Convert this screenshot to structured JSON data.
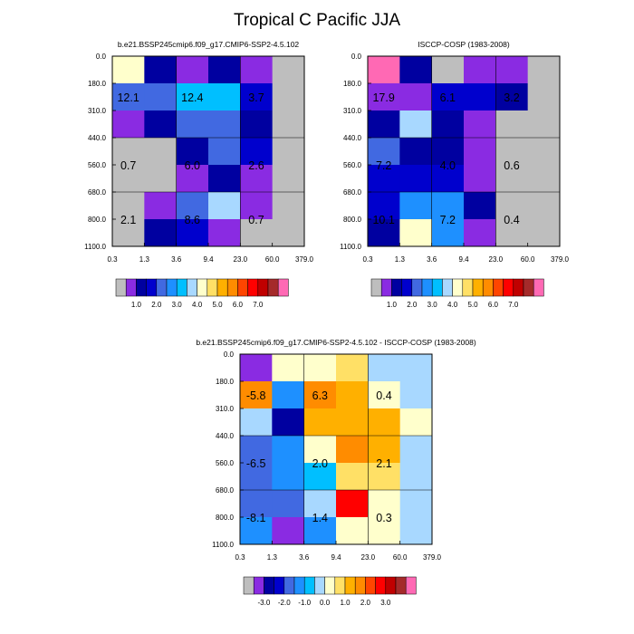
{
  "title": "Tropical C Pacific JJA",
  "chart_data": [
    {
      "type": "heatmap",
      "id": "model",
      "title": "b.e21.BSSP245cmip6.f09_g17.CMIP6-SSP2-4.5.102",
      "x_ticks": [
        "0.3",
        "1.3",
        "3.6",
        "9.4",
        "23.0",
        "60.0",
        "379.0"
      ],
      "y_ticks": [
        "0.0",
        "180.0",
        "310.0",
        "440.0",
        "560.0",
        "680.0",
        "800.0",
        "1100.0"
      ],
      "cells": [
        [
          "#ffffcc",
          "#0000a0",
          "#8a2be2",
          "#0000a0",
          "#8a2be2",
          "#bebebe"
        ],
        [
          "#4169e1",
          "#4169e1",
          "#00bfff",
          "#00bfff",
          "#0000cd",
          "#bebebe"
        ],
        [
          "#8a2be2",
          "#0000a0",
          "#4169e1",
          "#4169e1",
          "#0000a0",
          "#bebebe"
        ],
        [
          "#bebebe",
          "#bebebe",
          "#0000a0",
          "#4169e1",
          "#0000cd",
          "#bebebe"
        ],
        [
          "#bebebe",
          "#bebebe",
          "#8a2be2",
          "#0000a0",
          "#8a2be2",
          "#bebebe"
        ],
        [
          "#bebebe",
          "#8a2be2",
          "#4169e1",
          "#a8d8ff",
          "#8a2be2",
          "#bebebe"
        ],
        [
          "#bebebe",
          "#0000a0",
          "#0000cd",
          "#8a2be2",
          "#bebebe",
          "#bebebe"
        ]
      ],
      "labels": [
        {
          "value": "12.1",
          "col": 0.5,
          "row": 1.5
        },
        {
          "value": "12.4",
          "col": 2.5,
          "row": 1.5
        },
        {
          "value": "3.7",
          "col": 4.5,
          "row": 1.5
        },
        {
          "value": "0.7",
          "col": 0.5,
          "row": 4.0
        },
        {
          "value": "6.0",
          "col": 2.5,
          "row": 4.0
        },
        {
          "value": "2.6",
          "col": 4.5,
          "row": 4.0
        },
        {
          "value": "2.1",
          "col": 0.5,
          "row": 6.0
        },
        {
          "value": "8.6",
          "col": 2.5,
          "row": 6.0
        },
        {
          "value": "0.7",
          "col": 4.5,
          "row": 6.0
        }
      ],
      "colorbar": {
        "colors": [
          "#bebebe",
          "#8a2be2",
          "#0000a0",
          "#0000cd",
          "#4169e1",
          "#1e90ff",
          "#00bfff",
          "#a8d8ff",
          "#ffffcc",
          "#ffe066",
          "#ffb000",
          "#ff8c00",
          "#ff4500",
          "#ff0000",
          "#c00000",
          "#a52a2a",
          "#ff69b4"
        ],
        "labels": [
          "1.0",
          "2.0",
          "3.0",
          "4.0",
          "5.0",
          "6.0",
          "7.0"
        ],
        "label_start": 2,
        "label_step": 2
      }
    },
    {
      "type": "heatmap",
      "id": "obs",
      "title": "ISCCP-COSP (1983-2008)",
      "x_ticks": [
        "0.3",
        "1.3",
        "3.6",
        "9.4",
        "23.0",
        "60.0",
        "379.0"
      ],
      "y_ticks": [
        "0.0",
        "180.0",
        "310.0",
        "440.0",
        "560.0",
        "680.0",
        "800.0",
        "1100.0"
      ],
      "cells": [
        [
          "#ff69b4",
          "#0000a0",
          "#bebebe",
          "#8a2be2",
          "#8a2be2",
          "#bebebe"
        ],
        [
          "#8a2be2",
          "#8a2be2",
          "#0000cd",
          "#0000cd",
          "#0000a0",
          "#bebebe"
        ],
        [
          "#0000a0",
          "#a8d8ff",
          "#0000a0",
          "#8a2be2",
          "#bebebe",
          "#bebebe"
        ],
        [
          "#4169e1",
          "#0000a0",
          "#0000a0",
          "#8a2be2",
          "#bebebe",
          "#bebebe"
        ],
        [
          "#0000cd",
          "#0000cd",
          "#0000cd",
          "#8a2be2",
          "#bebebe",
          "#bebebe"
        ],
        [
          "#0000cd",
          "#1e90ff",
          "#1e90ff",
          "#0000a0",
          "#bebebe",
          "#bebebe"
        ],
        [
          "#0000a0",
          "#ffffcc",
          "#1e90ff",
          "#8a2be2",
          "#bebebe",
          "#bebebe"
        ]
      ],
      "labels": [
        {
          "value": "17.9",
          "col": 0.5,
          "row": 1.5
        },
        {
          "value": "6.1",
          "col": 2.5,
          "row": 1.5
        },
        {
          "value": "3.2",
          "col": 4.5,
          "row": 1.5
        },
        {
          "value": "7.2",
          "col": 0.5,
          "row": 4.0
        },
        {
          "value": "4.0",
          "col": 2.5,
          "row": 4.0
        },
        {
          "value": "0.6",
          "col": 4.5,
          "row": 4.0
        },
        {
          "value": "10.1",
          "col": 0.5,
          "row": 6.0
        },
        {
          "value": "7.2",
          "col": 2.5,
          "row": 6.0
        },
        {
          "value": "0.4",
          "col": 4.5,
          "row": 6.0
        }
      ],
      "colorbar": {
        "colors": [
          "#bebebe",
          "#8a2be2",
          "#0000a0",
          "#0000cd",
          "#4169e1",
          "#1e90ff",
          "#00bfff",
          "#a8d8ff",
          "#ffffcc",
          "#ffe066",
          "#ffb000",
          "#ff8c00",
          "#ff4500",
          "#ff0000",
          "#c00000",
          "#a52a2a",
          "#ff69b4"
        ],
        "labels": [
          "1.0",
          "2.0",
          "3.0",
          "4.0",
          "5.0",
          "6.0",
          "7.0"
        ],
        "label_start": 2,
        "label_step": 2
      }
    },
    {
      "type": "heatmap",
      "id": "diff",
      "title": "b.e21.BSSP245cmip6.f09_g17.CMIP6-SSP2-4.5.102 - ISCCP-COSP (1983-2008)",
      "x_ticks": [
        "0.3",
        "1.3",
        "3.6",
        "9.4",
        "23.0",
        "60.0",
        "379.0"
      ],
      "y_ticks": [
        "0.0",
        "180.0",
        "310.0",
        "440.0",
        "560.0",
        "680.0",
        "800.0",
        "1100.0"
      ],
      "cells": [
        [
          "#8a2be2",
          "#ffffcc",
          "#ffffcc",
          "#ffe066",
          "#a8d8ff",
          "#a8d8ff"
        ],
        [
          "#ff8c00",
          "#1e90ff",
          "#ff8c00",
          "#ffb000",
          "#ffffcc",
          "#a8d8ff"
        ],
        [
          "#a8d8ff",
          "#0000a0",
          "#ffb000",
          "#ffb000",
          "#ffb000",
          "#ffffcc"
        ],
        [
          "#4169e1",
          "#1e90ff",
          "#ffffcc",
          "#ff8c00",
          "#ffb000",
          "#a8d8ff"
        ],
        [
          "#4169e1",
          "#1e90ff",
          "#00bfff",
          "#ffe066",
          "#ffe066",
          "#a8d8ff"
        ],
        [
          "#4169e1",
          "#4169e1",
          "#a8d8ff",
          "#ff0000",
          "#ffffcc",
          "#a8d8ff"
        ],
        [
          "#1e90ff",
          "#8a2be2",
          "#1e90ff",
          "#ffffcc",
          "#ffffcc",
          "#a8d8ff"
        ]
      ],
      "labels": [
        {
          "value": "-5.8",
          "col": 0.5,
          "row": 1.5
        },
        {
          "value": "6.3",
          "col": 2.5,
          "row": 1.5
        },
        {
          "value": "0.4",
          "col": 4.5,
          "row": 1.5
        },
        {
          "value": "-6.5",
          "col": 0.5,
          "row": 4.0
        },
        {
          "value": "2.0",
          "col": 2.5,
          "row": 4.0
        },
        {
          "value": "2.1",
          "col": 4.5,
          "row": 4.0
        },
        {
          "value": "-8.1",
          "col": 0.5,
          "row": 6.0
        },
        {
          "value": "1.4",
          "col": 2.5,
          "row": 6.0
        },
        {
          "value": "0.3",
          "col": 4.5,
          "row": 6.0
        }
      ],
      "colorbar": {
        "colors": [
          "#bebebe",
          "#8a2be2",
          "#0000a0",
          "#0000cd",
          "#4169e1",
          "#1e90ff",
          "#00bfff",
          "#a8d8ff",
          "#ffffcc",
          "#ffe066",
          "#ffb000",
          "#ff8c00",
          "#ff4500",
          "#ff0000",
          "#c00000",
          "#a52a2a",
          "#ff69b4"
        ],
        "labels": [
          "-3.0",
          "-2.0",
          "-1.0",
          "0.0",
          "1.0",
          "2.0",
          "3.0"
        ],
        "label_start": 2,
        "label_step": 2
      }
    }
  ]
}
